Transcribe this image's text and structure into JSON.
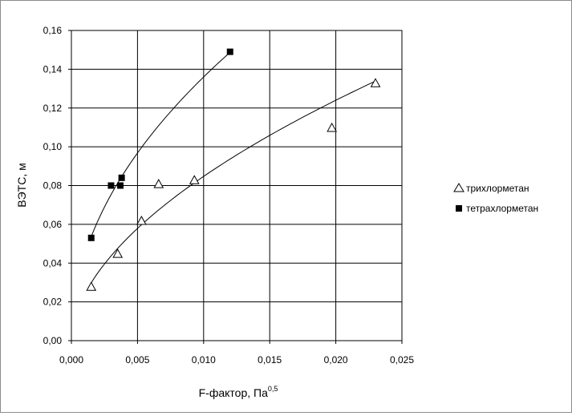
{
  "chart_data": {
    "type": "scatter",
    "title": "",
    "xlabel": "F-фактор, Па",
    "xlabel_sup": "0,5",
    "ylabel": "ВЭТС, м",
    "xlim": [
      0,
      0.025
    ],
    "ylim": [
      0,
      0.16
    ],
    "x_ticks": [
      "0,000",
      "0,005",
      "0,010",
      "0,015",
      "0,020",
      "0,025"
    ],
    "y_ticks": [
      "0,00",
      "0,02",
      "0,04",
      "0,06",
      "0,08",
      "0,10",
      "0,12",
      "0,14",
      "0,16"
    ],
    "grid": true,
    "legend_position": "right",
    "series": [
      {
        "name": "трихлорметан",
        "marker": "open-triangle",
        "color": "#000000",
        "points": [
          [
            0.0015,
            0.028
          ],
          [
            0.0035,
            0.045
          ],
          [
            0.0053,
            0.062
          ],
          [
            0.0066,
            0.081
          ],
          [
            0.0093,
            0.083
          ],
          [
            0.0197,
            0.11
          ],
          [
            0.023,
            0.133
          ]
        ],
        "trendline": "power"
      },
      {
        "name": "тетрахлорметан",
        "marker": "filled-square",
        "color": "#000000",
        "points": [
          [
            0.0015,
            0.053
          ],
          [
            0.003,
            0.08
          ],
          [
            0.0037,
            0.08
          ],
          [
            0.0038,
            0.084
          ],
          [
            0.012,
            0.149
          ]
        ],
        "trendline": "power"
      }
    ]
  }
}
